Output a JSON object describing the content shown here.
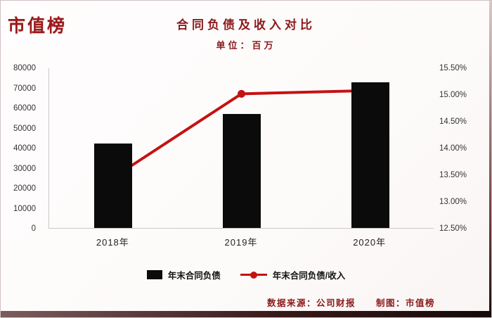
{
  "brand": {
    "logo": "市值榜"
  },
  "chart_data": {
    "type": "bar+line",
    "title": "合同负债及收入对比",
    "subtitle": "单位：百万",
    "categories": [
      "2018年",
      "2019年",
      "2020年"
    ],
    "series": [
      {
        "name": "年末合同负债",
        "type": "bar",
        "axis": "left",
        "values": [
          42000,
          57000,
          72500
        ],
        "color": "#0b0b0b"
      },
      {
        "name": "年末合同负债/收入",
        "type": "line",
        "axis": "right",
        "values": [
          13.45,
          15.02,
          15.08
        ],
        "color": "#c41212"
      }
    ],
    "left_axis": {
      "min": 0,
      "max": 80000,
      "step": 10000,
      "ticks": [
        "0",
        "10000",
        "20000",
        "30000",
        "40000",
        "50000",
        "60000",
        "70000",
        "80000"
      ]
    },
    "right_axis": {
      "min": 12.5,
      "max": 15.5,
      "step": 0.5,
      "ticks": [
        "12.50%",
        "13.00%",
        "13.50%",
        "14.00%",
        "14.50%",
        "15.00%",
        "15.50%"
      ]
    },
    "legend": [
      {
        "label": "年末合同负债",
        "marker": "bar",
        "color": "#0b0b0b"
      },
      {
        "label": "年末合同负债/收入",
        "marker": "line",
        "color": "#c41212"
      }
    ],
    "grid": false,
    "legend_position": "bottom"
  },
  "footer": {
    "source": "数据来源：公司财报",
    "credit": "制图：市值榜"
  }
}
